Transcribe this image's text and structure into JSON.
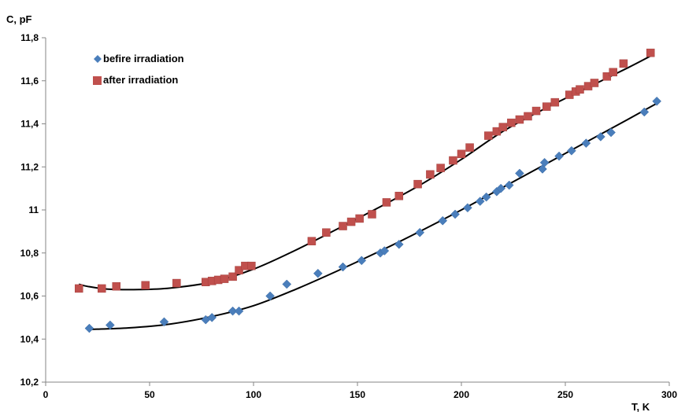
{
  "chart_data": {
    "type": "scatter",
    "title": "",
    "xlabel": "T, K",
    "ylabel": "C, pF",
    "xlim": [
      0,
      300
    ],
    "ylim": [
      10.2,
      11.8
    ],
    "x_ticks": [
      0,
      50,
      100,
      150,
      200,
      250,
      300
    ],
    "y_ticks": [
      10.2,
      10.4,
      10.6,
      10.8,
      11.0,
      11.2,
      11.4,
      11.6,
      11.8
    ],
    "y_tick_labels": [
      "10,2",
      "10,4",
      "10,6",
      "10,8",
      "11",
      "11,2",
      "11,4",
      "11,6",
      "11,8"
    ],
    "x_tick_labels": [
      "0",
      "50",
      "100",
      "150",
      "200",
      "250",
      "300"
    ],
    "grid": false,
    "legend_position": "top-left",
    "series": [
      {
        "name": "befire irradiation",
        "marker": "diamond",
        "color": "#4a7ebb",
        "x": [
          21,
          31,
          57,
          77,
          80,
          90,
          93,
          108,
          116,
          131,
          143,
          152,
          161,
          163,
          170,
          180,
          191,
          197,
          203,
          209,
          212,
          217,
          219,
          223,
          228,
          239,
          240,
          247,
          253,
          260,
          267,
          272,
          288,
          294
        ],
        "y": [
          10.45,
          10.465,
          10.48,
          10.49,
          10.5,
          10.53,
          10.53,
          10.6,
          10.655,
          10.705,
          10.735,
          10.765,
          10.8,
          10.81,
          10.84,
          10.895,
          10.95,
          10.98,
          11.01,
          11.04,
          11.06,
          11.085,
          11.1,
          11.115,
          11.17,
          11.19,
          11.22,
          11.25,
          11.275,
          11.31,
          11.34,
          11.36,
          11.455,
          11.505
        ]
      },
      {
        "name": "after irradiation",
        "marker": "square",
        "color": "#c0504d",
        "x": [
          16,
          27,
          34,
          48,
          63,
          77,
          80,
          83,
          86,
          90,
          93,
          96,
          99,
          128,
          135,
          143,
          147,
          151,
          157,
          164,
          170,
          179,
          185,
          190,
          196,
          200,
          204,
          213,
          217,
          220,
          224,
          228,
          232,
          236,
          241,
          245,
          252,
          255,
          257,
          261,
          264,
          270,
          273,
          278,
          291
        ],
        "y": [
          10.635,
          10.635,
          10.645,
          10.65,
          10.66,
          10.665,
          10.67,
          10.675,
          10.68,
          10.69,
          10.72,
          10.74,
          10.74,
          10.855,
          10.895,
          10.925,
          10.945,
          10.96,
          10.98,
          11.035,
          11.065,
          11.12,
          11.165,
          11.195,
          11.23,
          11.26,
          11.29,
          11.345,
          11.365,
          11.385,
          11.405,
          11.42,
          11.435,
          11.46,
          11.48,
          11.5,
          11.535,
          11.55,
          11.56,
          11.575,
          11.59,
          11.62,
          11.64,
          11.68,
          11.73
        ]
      }
    ],
    "trendlines": [
      {
        "series": "befire irradiation",
        "color": "#000000",
        "x": [
          21,
          40,
          60,
          80,
          100,
          120,
          140,
          160,
          180,
          200,
          220,
          240,
          260,
          280,
          294
        ],
        "y": [
          10.445,
          10.452,
          10.47,
          10.505,
          10.555,
          10.63,
          10.715,
          10.805,
          10.9,
          11.0,
          11.105,
          11.21,
          11.315,
          11.42,
          11.495
        ]
      },
      {
        "series": "after irradiation",
        "color": "#000000",
        "x": [
          16,
          20,
          30,
          45,
          60,
          80,
          100,
          120,
          140,
          160,
          180,
          200,
          220,
          240,
          260,
          280,
          291
        ],
        "y": [
          10.655,
          10.645,
          10.632,
          10.63,
          10.637,
          10.665,
          10.725,
          10.812,
          10.91,
          11.01,
          11.115,
          11.235,
          11.365,
          11.47,
          11.565,
          11.66,
          11.715
        ]
      }
    ]
  }
}
